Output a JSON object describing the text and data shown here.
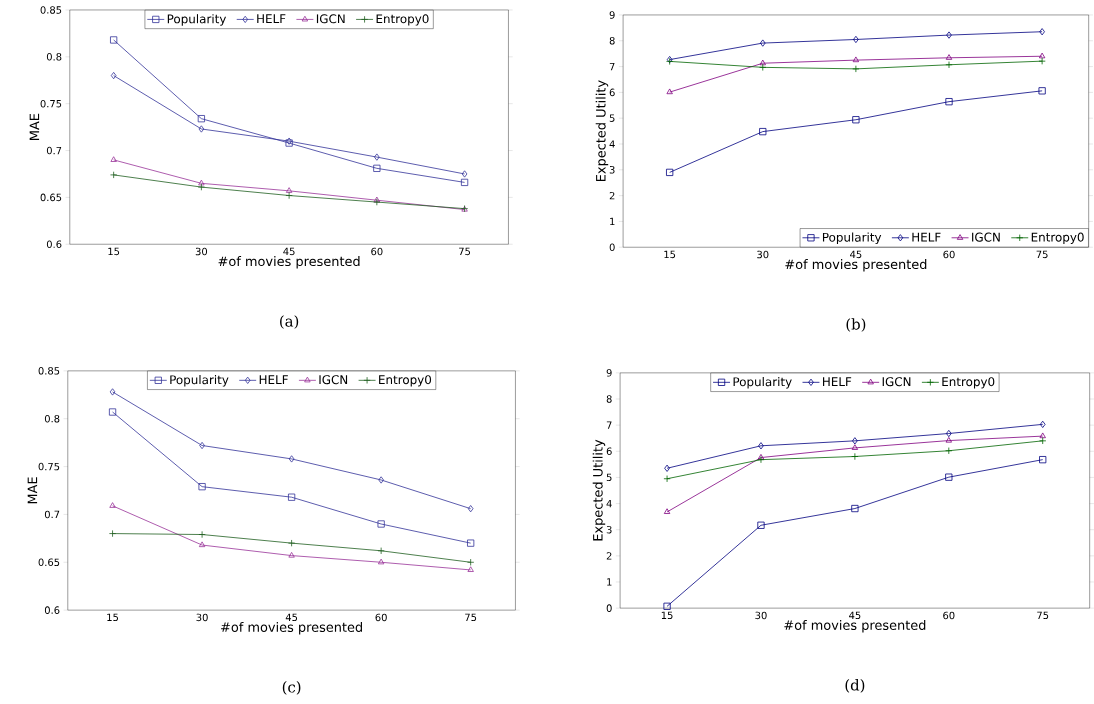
{
  "chart_data": [
    {
      "type": "line",
      "ylabel": "MAE",
      "xlabel": "#of movies presented",
      "annotations": [
        "(a)"
      ],
      "categories": [
        "15",
        "30",
        "45",
        "60",
        "75"
      ],
      "ylim": [
        0.6,
        0.85
      ],
      "yticks": [
        0.6,
        0.65,
        0.7,
        0.75,
        0.8,
        0.85
      ],
      "legend": "top",
      "grid": false,
      "line_style": "solid",
      "series": [
        {
          "name": "Popularity",
          "color": "#333399",
          "marker": "square",
          "values": [
            0.818,
            0.734,
            0.708,
            0.681,
            0.666
          ]
        },
        {
          "name": "HELF",
          "color": "#333399",
          "marker": "diamond",
          "values": [
            0.78,
            0.723,
            0.71,
            0.693,
            0.675
          ]
        },
        {
          "name": "IGCN",
          "color": "#993399",
          "marker": "triangle",
          "values": [
            0.69,
            0.665,
            0.657,
            0.647,
            0.637
          ]
        },
        {
          "name": "Entropy0",
          "color": "#1f5f1f",
          "marker": "cross",
          "values": [
            0.674,
            0.661,
            0.652,
            0.645,
            0.638
          ]
        }
      ]
    },
    {
      "type": "line",
      "ylabel": "Expected Utility",
      "xlabel": "#of movies presented",
      "annotations": [
        "(b)"
      ],
      "categories": [
        "15",
        "30",
        "45",
        "60",
        "75"
      ],
      "ylim": [
        0,
        9
      ],
      "yticks": [
        0,
        1,
        2,
        3,
        4,
        5,
        6,
        7,
        8,
        9
      ],
      "legend": "bottom right",
      "grid": false,
      "line_style": "solid",
      "series": [
        {
          "name": "Popularity",
          "color": "#000080",
          "marker": "square",
          "values": [
            2.9,
            4.48,
            4.94,
            5.64,
            6.06
          ]
        },
        {
          "name": "HELF",
          "color": "#000080",
          "marker": "diamond",
          "values": [
            7.27,
            7.91,
            8.05,
            8.22,
            8.35
          ]
        },
        {
          "name": "IGCN",
          "color": "#800080",
          "marker": "triangle",
          "values": [
            6.01,
            7.13,
            7.25,
            7.34,
            7.4
          ]
        },
        {
          "name": "Entropy0",
          "color": "#006400",
          "marker": "cross",
          "values": [
            7.2,
            6.97,
            6.91,
            7.07,
            7.21
          ]
        }
      ]
    },
    {
      "type": "line",
      "ylabel": "MAE",
      "xlabel": "#of movies presented",
      "annotations": [
        "(c)"
      ],
      "categories": [
        "15",
        "30",
        "45",
        "60",
        "75"
      ],
      "ylim": [
        0.6,
        0.85
      ],
      "yticks": [
        0.6,
        0.65,
        0.7,
        0.75,
        0.8,
        0.85
      ],
      "legend": "top",
      "grid": false,
      "line_style": "solid",
      "series": [
        {
          "name": "Popularity",
          "color": "#333399",
          "marker": "square",
          "values": [
            0.807,
            0.729,
            0.718,
            0.69,
            0.67
          ]
        },
        {
          "name": "HELF",
          "color": "#333399",
          "marker": "diamond",
          "values": [
            0.828,
            0.772,
            0.758,
            0.736,
            0.706
          ]
        },
        {
          "name": "IGCN",
          "color": "#993399",
          "marker": "triangle",
          "values": [
            0.709,
            0.668,
            0.657,
            0.65,
            0.642
          ]
        },
        {
          "name": "Entropy0",
          "color": "#1f5f1f",
          "marker": "cross",
          "values": [
            0.68,
            0.679,
            0.67,
            0.662,
            0.65
          ]
        }
      ]
    },
    {
      "type": "line",
      "ylabel": "Expected Utility",
      "xlabel": "#of movies presented",
      "annotations": [
        "(d)"
      ],
      "categories": [
        "15",
        "30",
        "45",
        "60",
        "75"
      ],
      "ylim": [
        0,
        9
      ],
      "yticks": [
        0,
        1,
        2,
        3,
        4,
        5,
        6,
        7,
        8,
        9
      ],
      "legend": "top",
      "grid": false,
      "line_style": "solid",
      "series": [
        {
          "name": "Popularity",
          "color": "#000080",
          "marker": "square",
          "values": [
            0.07,
            3.17,
            3.81,
            5.01,
            5.68
          ]
        },
        {
          "name": "HELF",
          "color": "#000080",
          "marker": "diamond",
          "values": [
            5.35,
            6.21,
            6.4,
            6.68,
            7.03
          ]
        },
        {
          "name": "IGCN",
          "color": "#800080",
          "marker": "triangle",
          "values": [
            3.68,
            5.76,
            6.13,
            6.41,
            6.58
          ]
        },
        {
          "name": "Entropy0",
          "color": "#006400",
          "marker": "cross",
          "values": [
            4.95,
            5.68,
            5.8,
            6.02,
            6.4
          ]
        }
      ]
    }
  ]
}
